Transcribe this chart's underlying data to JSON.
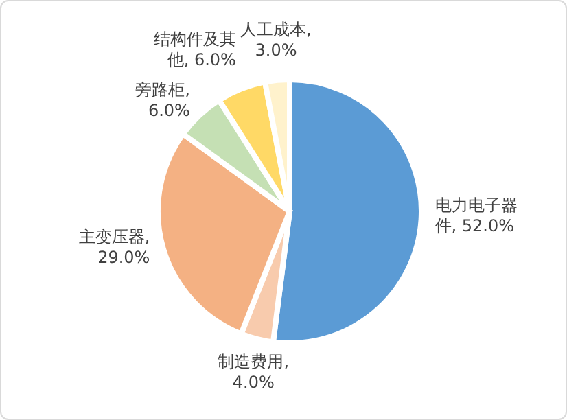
{
  "chart_data": {
    "type": "pie",
    "categories": [
      "电力电子器件",
      "制造费用",
      "主变压器",
      "旁路柜",
      "结构件及其他",
      "人工成本"
    ],
    "values": [
      52,
      4,
      29,
      6,
      6,
      3
    ],
    "value_labels": [
      ", 52.0%",
      ", 4.0%",
      ", 29.0%",
      ", 6.0%",
      ", 6.0%",
      ", 3.0%"
    ],
    "colors": [
      "#5b9bd5",
      "#f8cbad",
      "#f4b183",
      "#c5e0b4",
      "#ffd966",
      "#fff2cc"
    ],
    "legend": false
  }
}
